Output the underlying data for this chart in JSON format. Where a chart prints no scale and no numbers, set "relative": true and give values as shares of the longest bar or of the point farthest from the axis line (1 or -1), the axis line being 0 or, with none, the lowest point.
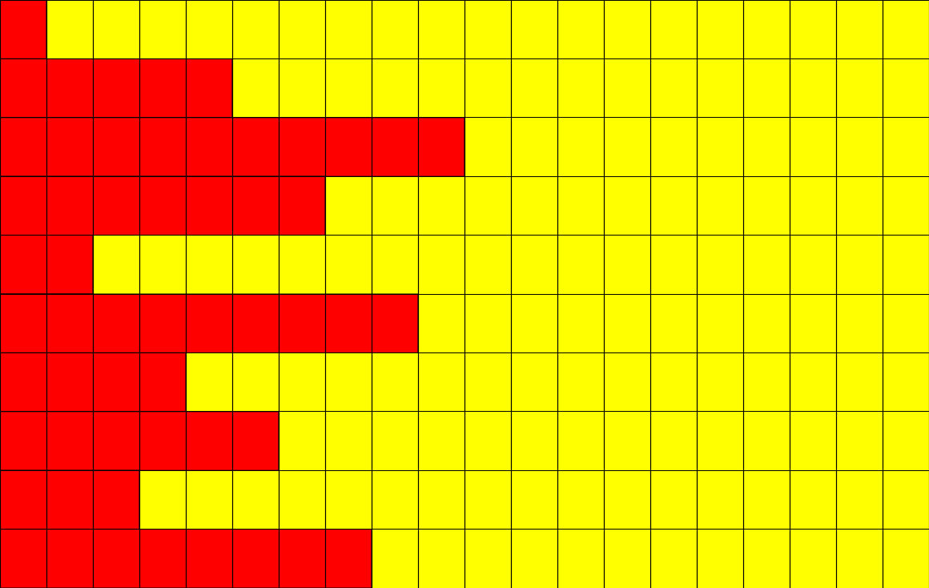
{
  "chart_data": {
    "type": "bar",
    "orientation": "horizontal",
    "relative": true,
    "grid": true,
    "categories": [
      null,
      null,
      null,
      null,
      null,
      null,
      null,
      null,
      null,
      null
    ],
    "values": [
      0.1,
      0.5,
      1,
      0.7,
      0.2,
      0.9,
      0.4,
      0.6,
      0.3,
      0.8
    ],
    "color": "#ff0000"
  }
}
